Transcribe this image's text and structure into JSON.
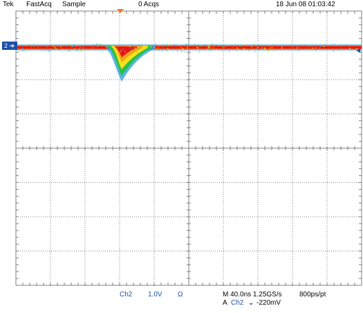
{
  "header": {
    "brand": "Tek",
    "mode": "FastAcq",
    "acq_mode": "Sample",
    "acqs": "0 Acqs",
    "timestamp": "18 Jun 08 01:03:42"
  },
  "channel_marker": {
    "label": "2"
  },
  "footer": {
    "channel": "Ch2",
    "scale": "1.0V",
    "coupling_symbol": "Ω",
    "timebase": "M 40.0ns 1.25GS/s",
    "record": "800ps/pt",
    "trigger_source_prefix": "A",
    "trigger_channel": "Ch2",
    "trigger_slope_symbol": "⌄",
    "trigger_level": "-220mV"
  },
  "colors": {
    "grid": "#7f7f7f",
    "marker": "#1f4fa8",
    "trigger_marker": "#f07a2a",
    "trace_hot": "#e8141c",
    "trace_warm": "#f7a21b",
    "trace_mid": "#f5e21c",
    "trace_cool": "#2fbf45",
    "trace_cold": "#2ea3e6"
  }
}
